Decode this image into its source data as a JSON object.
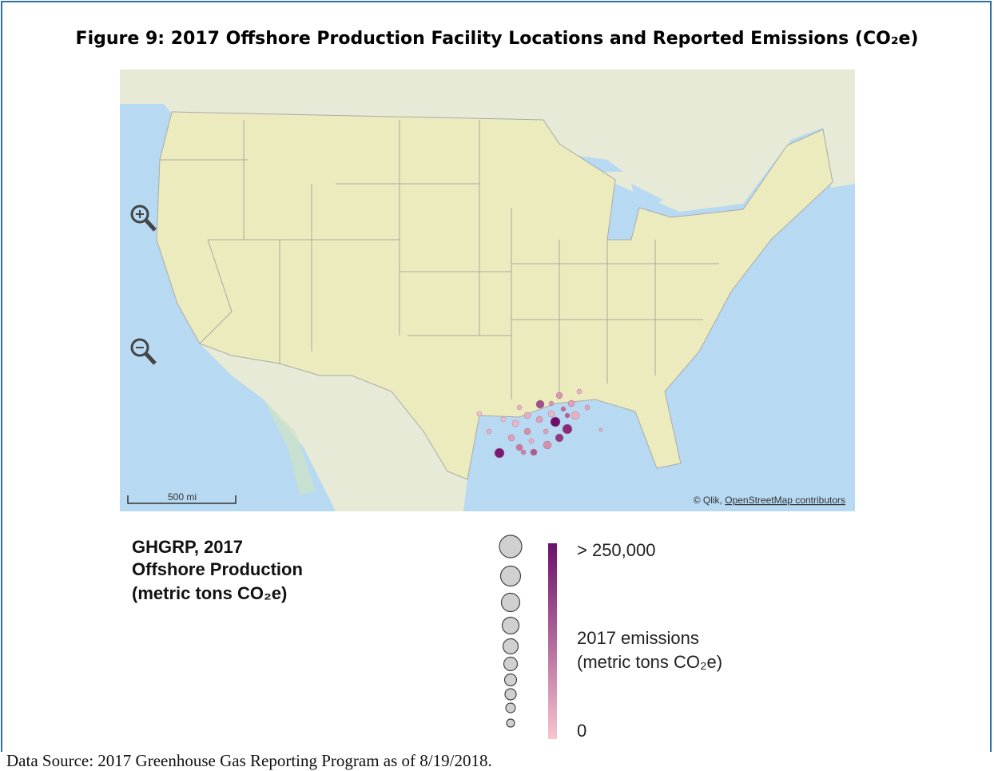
{
  "title": "Figure 9: 2017 Offshore Production Facility Locations and Reported Emissions (CO₂e)",
  "map": {
    "scale": "500 mi",
    "attribution_prefix": "© Qlik,",
    "attribution_link": "OpenStreetMap contributors"
  },
  "legend": {
    "title": [
      "GHGRP, 2017",
      "Offshore Production",
      "(metric tons CO₂e)"
    ],
    "max_label": "> 250,000",
    "color_label": [
      "2017 emissions",
      "(metric tons CO₂e)"
    ],
    "min_label": "0"
  },
  "source": "Data Source: 2017 Greenhouse Gas Reporting Program as of 8/19/2018."
}
